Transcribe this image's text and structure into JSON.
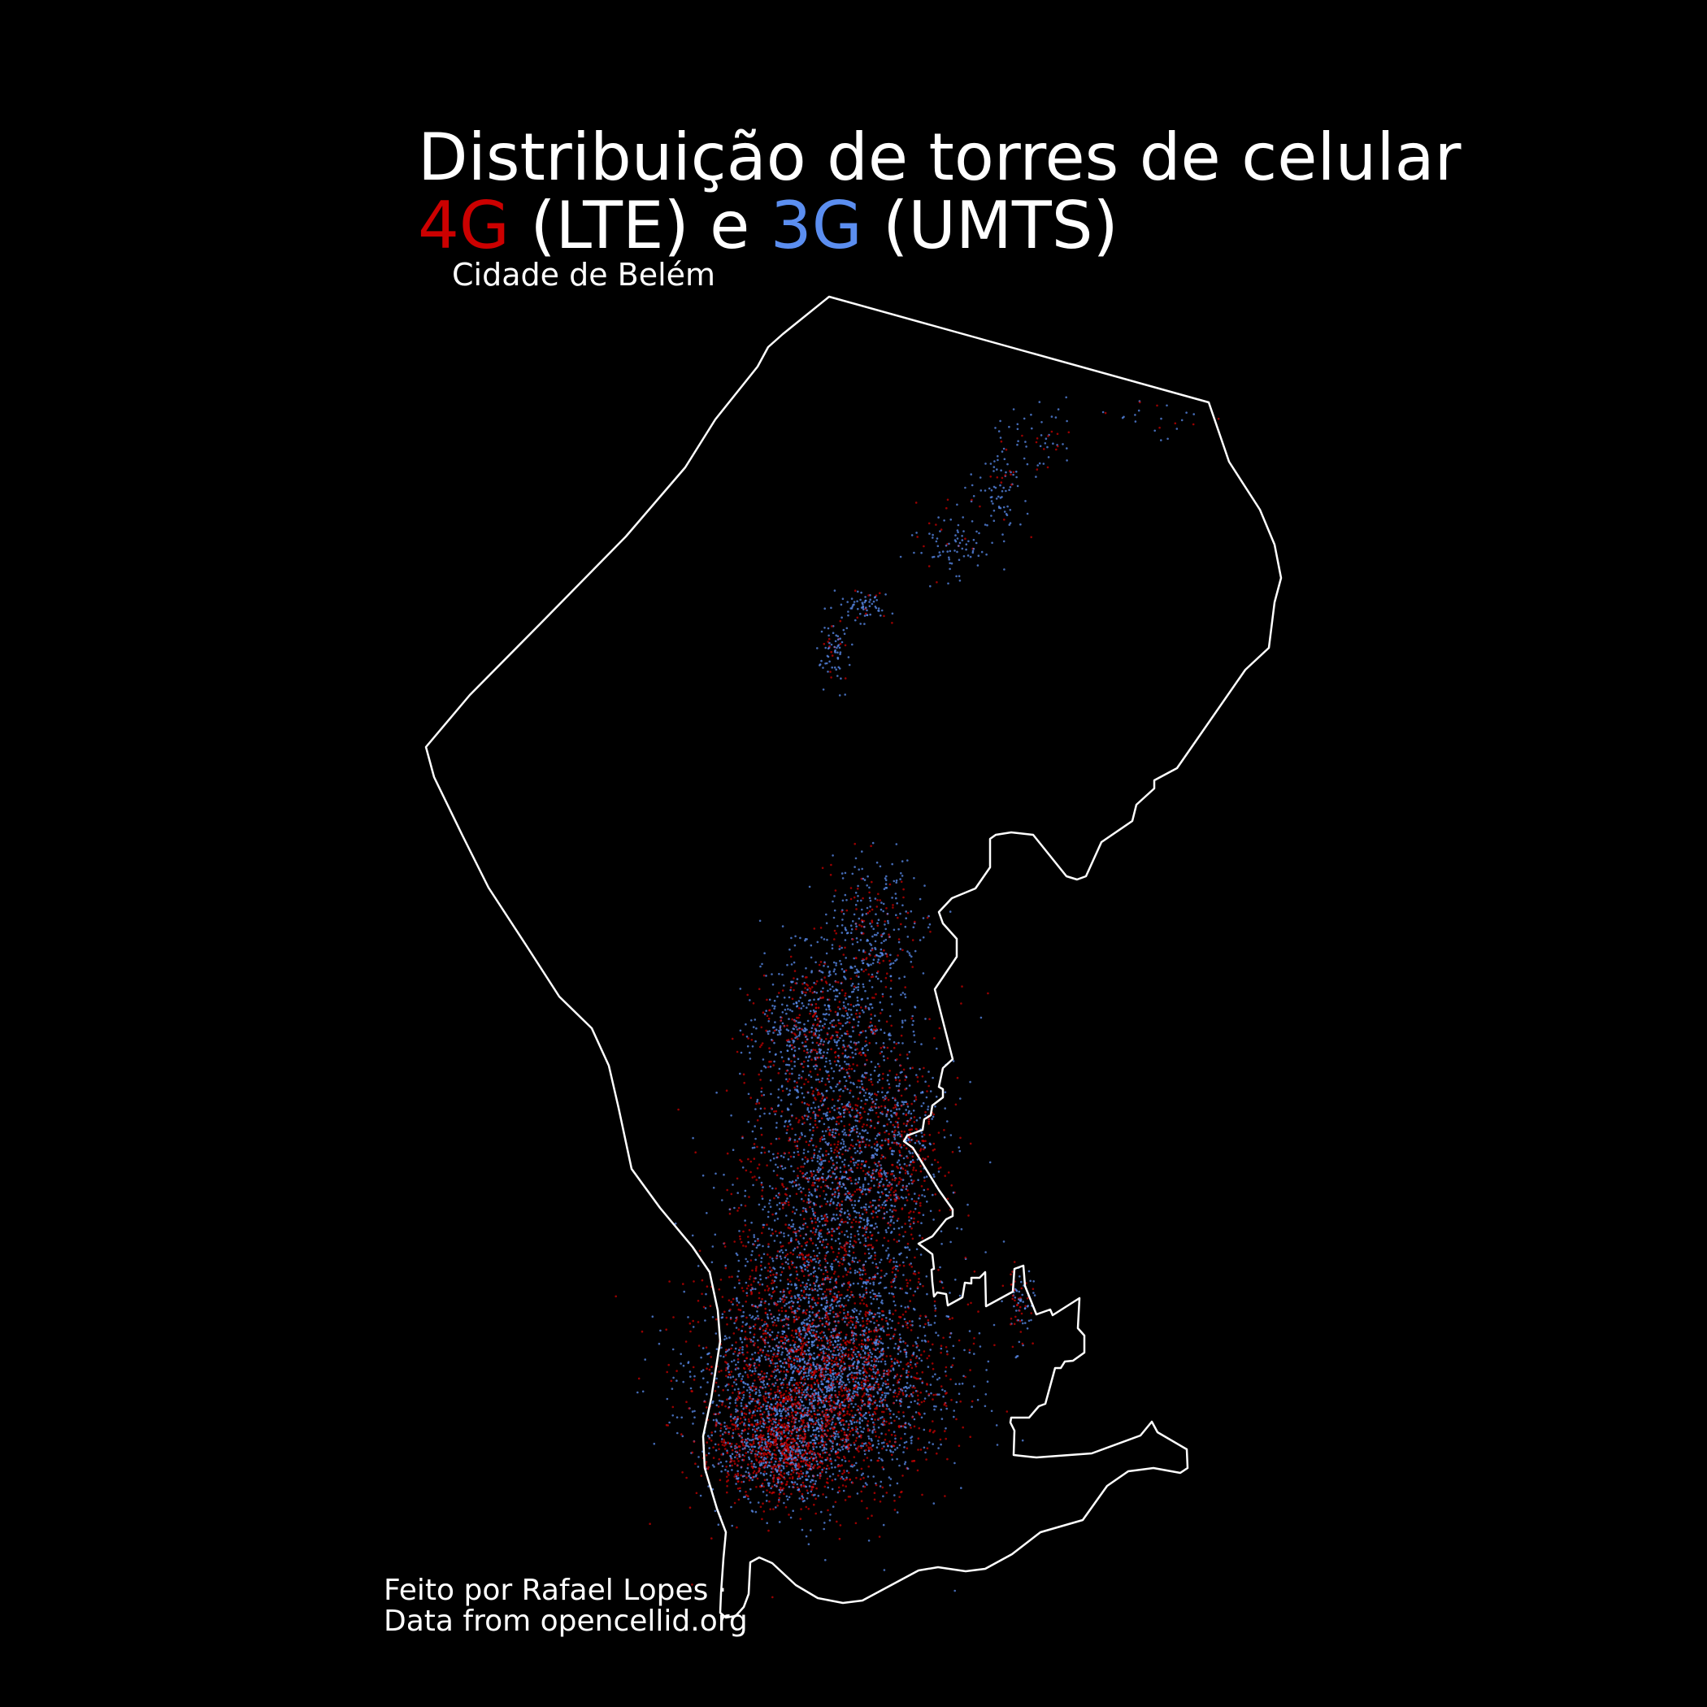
{
  "title": {
    "line1": "Distribuição de torres de celular",
    "lte_tag": "4G",
    "lte_label": " (LTE) e ",
    "umts_tag": "3G",
    "umts_label": " (UMTS)"
  },
  "subtitle": "Cidade de Belém",
  "caption": {
    "line1": "Feito por Rafael Lopes ·",
    "line2": "Data from opencellid.org"
  },
  "colors": {
    "background": "#000000",
    "boundary": "#ffffff",
    "lte": "#cc0000",
    "umts": "#5b8ef0"
  },
  "map": {
    "region": "Cidade de Belém",
    "layers": [
      "municipal-boundary",
      "lte-towers",
      "umts-towers"
    ]
  }
}
